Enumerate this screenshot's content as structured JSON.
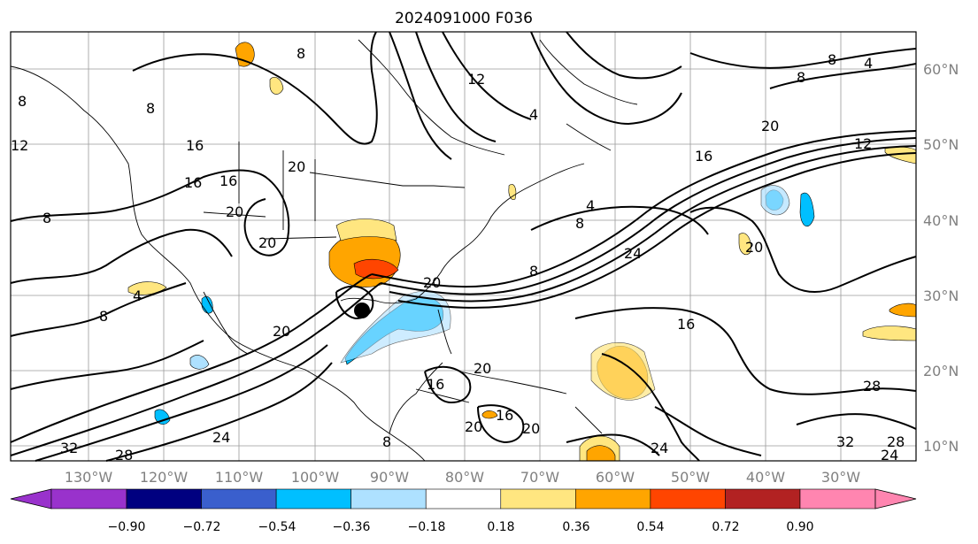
{
  "title": "2024091000 F036",
  "lon_labels": [
    "130°W",
    "120°W",
    "110°W",
    "100°W",
    "90°W",
    "80°W",
    "70°W",
    "60°W",
    "50°W",
    "40°W",
    "30°W"
  ],
  "lat_labels": [
    "60°N",
    "50°N",
    "40°N",
    "30°N",
    "20°N",
    "10°N"
  ],
  "colorbar": {
    "ticks": [
      "−0.90",
      "−0.72",
      "−0.54",
      "−0.36",
      "−0.18",
      "0.18",
      "0.36",
      "0.54",
      "0.72",
      "0.90"
    ],
    "colors": [
      "#9932cc",
      "#000080",
      "#3a5fcd",
      "#00bfff",
      "#aee1ff",
      "#ffffff",
      "#ffe680",
      "#ffa500",
      "#ff4500",
      "#b22222",
      "#ff85b0"
    ]
  },
  "contour_labels": [
    "8",
    "8",
    "8",
    "4",
    "12",
    "16",
    "16",
    "20",
    "20",
    "20",
    "24",
    "28",
    "32",
    "4",
    "8",
    "12",
    "16",
    "20",
    "24",
    "16",
    "20",
    "24",
    "28",
    "32",
    "28",
    "24",
    "16",
    "20",
    "20",
    "16",
    "8",
    "4",
    "8",
    "8",
    "8",
    "20",
    "12",
    "20",
    "4",
    "8",
    "16",
    "20",
    "8"
  ],
  "storm_marker_icon": "black-circle-icon"
}
